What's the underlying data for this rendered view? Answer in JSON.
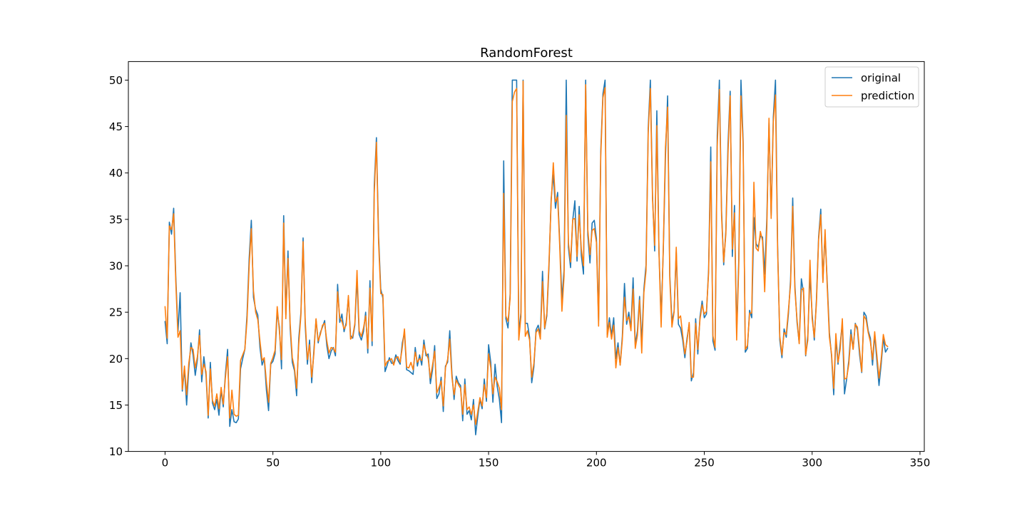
{
  "chart_data": {
    "type": "line",
    "title": "RandomForest",
    "xlabel": "",
    "ylabel": "",
    "xlim": [
      -17,
      352
    ],
    "ylim": [
      10,
      52
    ],
    "xticks": [
      0,
      50,
      100,
      150,
      200,
      250,
      300,
      350
    ],
    "yticks": [
      10,
      15,
      20,
      25,
      30,
      35,
      40,
      45,
      50
    ],
    "grid": false,
    "legend_position": "top-right",
    "series": [
      {
        "name": "original",
        "color": "#1f77b4",
        "values": [
          24.0,
          21.6,
          34.7,
          33.4,
          36.2,
          28.7,
          22.9,
          27.1,
          16.5,
          18.9,
          15.0,
          18.9,
          21.7,
          20.4,
          18.2,
          19.9,
          23.1,
          17.5,
          20.2,
          18.2,
          13.6,
          19.6,
          15.2,
          14.5,
          15.6,
          13.9,
          16.6,
          14.8,
          18.4,
          21.0,
          12.7,
          14.5,
          13.2,
          13.1,
          13.5,
          18.9,
          20.0,
          21.0,
          24.7,
          30.8,
          34.9,
          26.6,
          25.3,
          24.7,
          21.2,
          19.3,
          20.0,
          16.6,
          14.4,
          19.4,
          19.7,
          20.5,
          25.0,
          23.4,
          18.9,
          35.4,
          24.7,
          31.6,
          23.3,
          19.6,
          18.7,
          16.0,
          22.2,
          25.0,
          33.0,
          23.5,
          19.4,
          22.0,
          17.4,
          20.9,
          24.2,
          21.7,
          22.8,
          23.4,
          24.1,
          21.4,
          20.0,
          20.8,
          21.2,
          20.3,
          28.0,
          23.9,
          24.8,
          22.9,
          23.9,
          26.6,
          22.5,
          22.2,
          23.6,
          28.7,
          22.6,
          22.0,
          22.9,
          25.0,
          20.6,
          28.4,
          21.4,
          38.7,
          43.8,
          33.2,
          27.5,
          26.5,
          18.6,
          19.3,
          20.1,
          19.5,
          19.5,
          20.4,
          19.8,
          19.4,
          21.7,
          22.8,
          18.8,
          18.7,
          18.5,
          18.3,
          21.2,
          19.2,
          20.4,
          19.3,
          22.0,
          20.3,
          20.5,
          17.3,
          18.8,
          21.4,
          15.7,
          16.2,
          18.0,
          14.3,
          19.2,
          19.6,
          23.0,
          18.4,
          15.6,
          18.1,
          17.4,
          17.1,
          13.3,
          17.8,
          14.0,
          14.4,
          13.4,
          15.6,
          11.8,
          13.8,
          15.6,
          14.6,
          17.8,
          15.4,
          21.5,
          19.6,
          15.3,
          19.4,
          17.0,
          15.6,
          13.1,
          41.3,
          24.3,
          23.3,
          27.0,
          50.0,
          50.0,
          50.0,
          22.7,
          25.0,
          50.0,
          23.8,
          23.8,
          22.3,
          17.4,
          19.1,
          23.1,
          23.6,
          22.6,
          29.4,
          23.2,
          24.6,
          29.9,
          37.2,
          39.8,
          36.2,
          37.9,
          32.5,
          26.4,
          29.6,
          50.0,
          32.0,
          29.8,
          34.9,
          37.0,
          30.5,
          36.4,
          31.1,
          29.1,
          50.0,
          33.3,
          30.3,
          34.6,
          34.9,
          32.9,
          24.1,
          42.3,
          48.5,
          50.0,
          22.6,
          24.4,
          22.5,
          24.4,
          20.0,
          21.7,
          19.3,
          22.4,
          28.1,
          23.7,
          25.0,
          23.3,
          28.7,
          21.5,
          23.0,
          26.7,
          21.7,
          27.5,
          30.1,
          44.8,
          50.0,
          37.6,
          31.6,
          46.7,
          31.5,
          24.3,
          31.7,
          41.7,
          48.3,
          29.0,
          24.0,
          25.1,
          31.5,
          23.7,
          23.3,
          22.0,
          20.1,
          22.2,
          23.7,
          17.6,
          18.5,
          24.3,
          20.5,
          24.5,
          26.2,
          24.4,
          24.8,
          29.6,
          42.8,
          21.9,
          20.9,
          44.0,
          50.0,
          36.0,
          30.1,
          33.8,
          43.1,
          48.8,
          31.0,
          36.5,
          22.8,
          30.7,
          50.0,
          43.5,
          20.7,
          21.1,
          25.2,
          24.4,
          35.2,
          32.4,
          32.0,
          33.2,
          33.1,
          29.1,
          35.1,
          45.4,
          35.4,
          46.0,
          50.0,
          32.2,
          22.0,
          20.1,
          23.2,
          22.3,
          24.8,
          28.5,
          37.3,
          27.9,
          23.9,
          21.7,
          28.6,
          27.1,
          20.3,
          22.5,
          29.0,
          24.8,
          22.0,
          26.4,
          33.1,
          36.1,
          28.4,
          33.4,
          28.2,
          22.8,
          20.3,
          16.1,
          22.1,
          19.4,
          21.6,
          23.8,
          16.2,
          17.8,
          19.8,
          23.1,
          21.0,
          23.8,
          23.1,
          20.4,
          18.5,
          25.0,
          24.6,
          23.0,
          22.2,
          19.3,
          22.6,
          19.8,
          17.1,
          19.4,
          22.2,
          20.7,
          21.1
        ]
      },
      {
        "name": "prediction",
        "color": "#ff7f0e",
        "values": [
          25.6,
          22.2,
          34.3,
          33.9,
          35.6,
          28.1,
          22.3,
          23.0,
          16.7,
          19.2,
          16.1,
          19.5,
          21.2,
          21.0,
          19.0,
          20.2,
          22.5,
          18.3,
          19.4,
          18.6,
          13.9,
          18.9,
          15.5,
          14.9,
          16.2,
          14.6,
          16.9,
          15.1,
          18.0,
          20.2,
          13.6,
          16.6,
          14.0,
          13.8,
          13.9,
          19.8,
          20.4,
          21.0,
          24.1,
          30.0,
          34.0,
          27.3,
          25.0,
          24.2,
          21.9,
          19.8,
          20.1,
          17.5,
          15.3,
          19.5,
          20.1,
          20.9,
          25.6,
          23.0,
          19.9,
          34.6,
          24.3,
          30.8,
          23.8,
          20.1,
          19.0,
          16.8,
          21.6,
          24.7,
          32.6,
          24.0,
          19.9,
          21.5,
          18.0,
          20.5,
          24.3,
          21.9,
          22.6,
          23.6,
          23.8,
          21.9,
          20.6,
          21.2,
          21.1,
          20.7,
          27.2,
          24.4,
          24.0,
          23.2,
          23.6,
          26.8,
          22.1,
          22.4,
          23.8,
          29.5,
          23.0,
          22.4,
          23.3,
          24.6,
          21.1,
          27.6,
          21.9,
          37.8,
          43.3,
          32.5,
          27.0,
          26.9,
          19.2,
          19.7,
          19.8,
          20.0,
          19.3,
          20.1,
          20.2,
          19.6,
          21.2,
          23.2,
          19.1,
          19.0,
          19.6,
          18.8,
          20.7,
          19.6,
          20.0,
          19.8,
          21.5,
          20.6,
          20.0,
          17.9,
          19.3,
          20.8,
          16.3,
          16.9,
          17.6,
          14.9,
          19.0,
          19.9,
          22.1,
          18.0,
          16.1,
          17.7,
          17.2,
          16.8,
          14.0,
          17.2,
          14.5,
          14.8,
          14.0,
          15.0,
          12.9,
          14.3,
          15.8,
          14.9,
          17.2,
          15.8,
          20.5,
          19.0,
          16.2,
          18.0,
          17.5,
          16.8,
          14.5,
          37.8,
          24.6,
          24.0,
          26.5,
          47.7,
          48.7,
          49.1,
          22.0,
          24.5,
          49.9,
          22.4,
          23.0,
          22.0,
          18.0,
          19.5,
          22.8,
          23.2,
          22.1,
          28.3,
          23.3,
          24.9,
          30.4,
          36.8,
          41.1,
          36.9,
          37.4,
          32.0,
          25.1,
          28.9,
          46.2,
          32.5,
          30.4,
          35.0,
          35.1,
          31.0,
          35.5,
          31.8,
          30.0,
          49.5,
          33.9,
          31.2,
          33.8,
          34.0,
          32.5,
          23.5,
          41.8,
          48.1,
          49.2,
          22.3,
          23.9,
          22.1,
          23.6,
          19.0,
          21.2,
          19.3,
          22.0,
          26.6,
          24.1,
          24.5,
          23.0,
          27.5,
          21.1,
          22.5,
          26.3,
          20.6,
          27.1,
          29.5,
          44.3,
          49.1,
          37.2,
          32.2,
          45.1,
          31.4,
          23.4,
          32.0,
          42.8,
          47.1,
          28.6,
          23.4,
          25.0,
          32.0,
          24.3,
          24.6,
          22.5,
          20.5,
          21.9,
          23.9,
          18.0,
          18.0,
          23.8,
          21.0,
          24.2,
          25.8,
          24.8,
          25.1,
          29.2,
          41.2,
          22.5,
          21.2,
          42.8,
          49.0,
          35.4,
          30.4,
          33.4,
          42.1,
          48.3,
          31.8,
          35.7,
          22.0,
          30.1,
          48.3,
          43.1,
          21.0,
          21.4,
          24.9,
          24.9,
          39.0,
          31.9,
          31.6,
          33.7,
          32.7,
          27.2,
          34.1,
          45.9,
          35.1,
          45.5,
          48.4,
          31.6,
          22.4,
          20.4,
          22.8,
          22.6,
          25.2,
          28.0,
          36.4,
          27.4,
          24.2,
          21.6,
          27.4,
          27.6,
          20.4,
          22.0,
          30.6,
          24.3,
          22.3,
          26.0,
          32.8,
          35.5,
          28.2,
          33.9,
          27.7,
          22.3,
          20.5,
          16.8,
          22.7,
          19.6,
          21.0,
          24.3,
          17.8,
          17.9,
          19.4,
          22.6,
          21.0,
          23.7,
          23.4,
          20.9,
          18.6,
          24.6,
          24.2,
          22.8,
          21.8,
          19.9,
          22.9,
          20.4,
          17.9,
          19.9,
          22.6,
          21.5,
          21.3
        ]
      }
    ]
  }
}
